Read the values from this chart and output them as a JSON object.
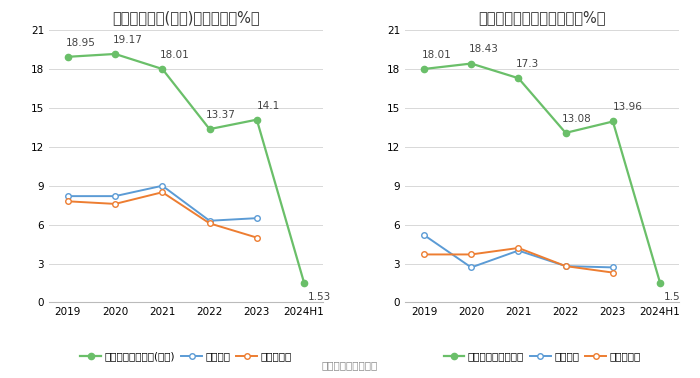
{
  "left_title": "净资产收益率(加权)历年情况（%）",
  "right_title": "投入资本回报率历年情况（%）",
  "x_labels": [
    "2019",
    "2020",
    "2021",
    "2022",
    "2023",
    "2024H1"
  ],
  "left": {
    "company": [
      18.95,
      19.17,
      18.01,
      13.37,
      14.1,
      1.53
    ],
    "industry_avg": [
      8.2,
      8.2,
      9.0,
      6.3,
      6.5,
      null
    ],
    "industry_median": [
      7.8,
      7.6,
      8.5,
      6.1,
      5.0,
      null
    ],
    "company_label": "公司净资产收益率(加权)",
    "avg_label": "行业均值",
    "median_label": "行业中位数"
  },
  "right": {
    "company": [
      18.01,
      18.43,
      17.3,
      13.08,
      13.96,
      1.5
    ],
    "industry_avg": [
      5.2,
      2.7,
      4.0,
      2.8,
      2.7,
      null
    ],
    "industry_median": [
      3.7,
      3.7,
      4.2,
      2.8,
      2.3,
      null
    ],
    "company_label": "公司投入资本回报率",
    "avg_label": "行业均值",
    "median_label": "行业中位数"
  },
  "ylim": [
    0,
    21
  ],
  "yticks": [
    0,
    3,
    6,
    9,
    12,
    15,
    18,
    21
  ],
  "green_color": "#6abf69",
  "blue_color": "#5b9bd5",
  "orange_color": "#ed7d31",
  "bg_color": "#ffffff",
  "grid_color": "#d8d8d8",
  "footer": "数据来源：恒生聚源",
  "title_fontsize": 10.5,
  "tick_fontsize": 7.5,
  "annotation_fontsize": 7.5,
  "legend_fontsize": 7.5
}
